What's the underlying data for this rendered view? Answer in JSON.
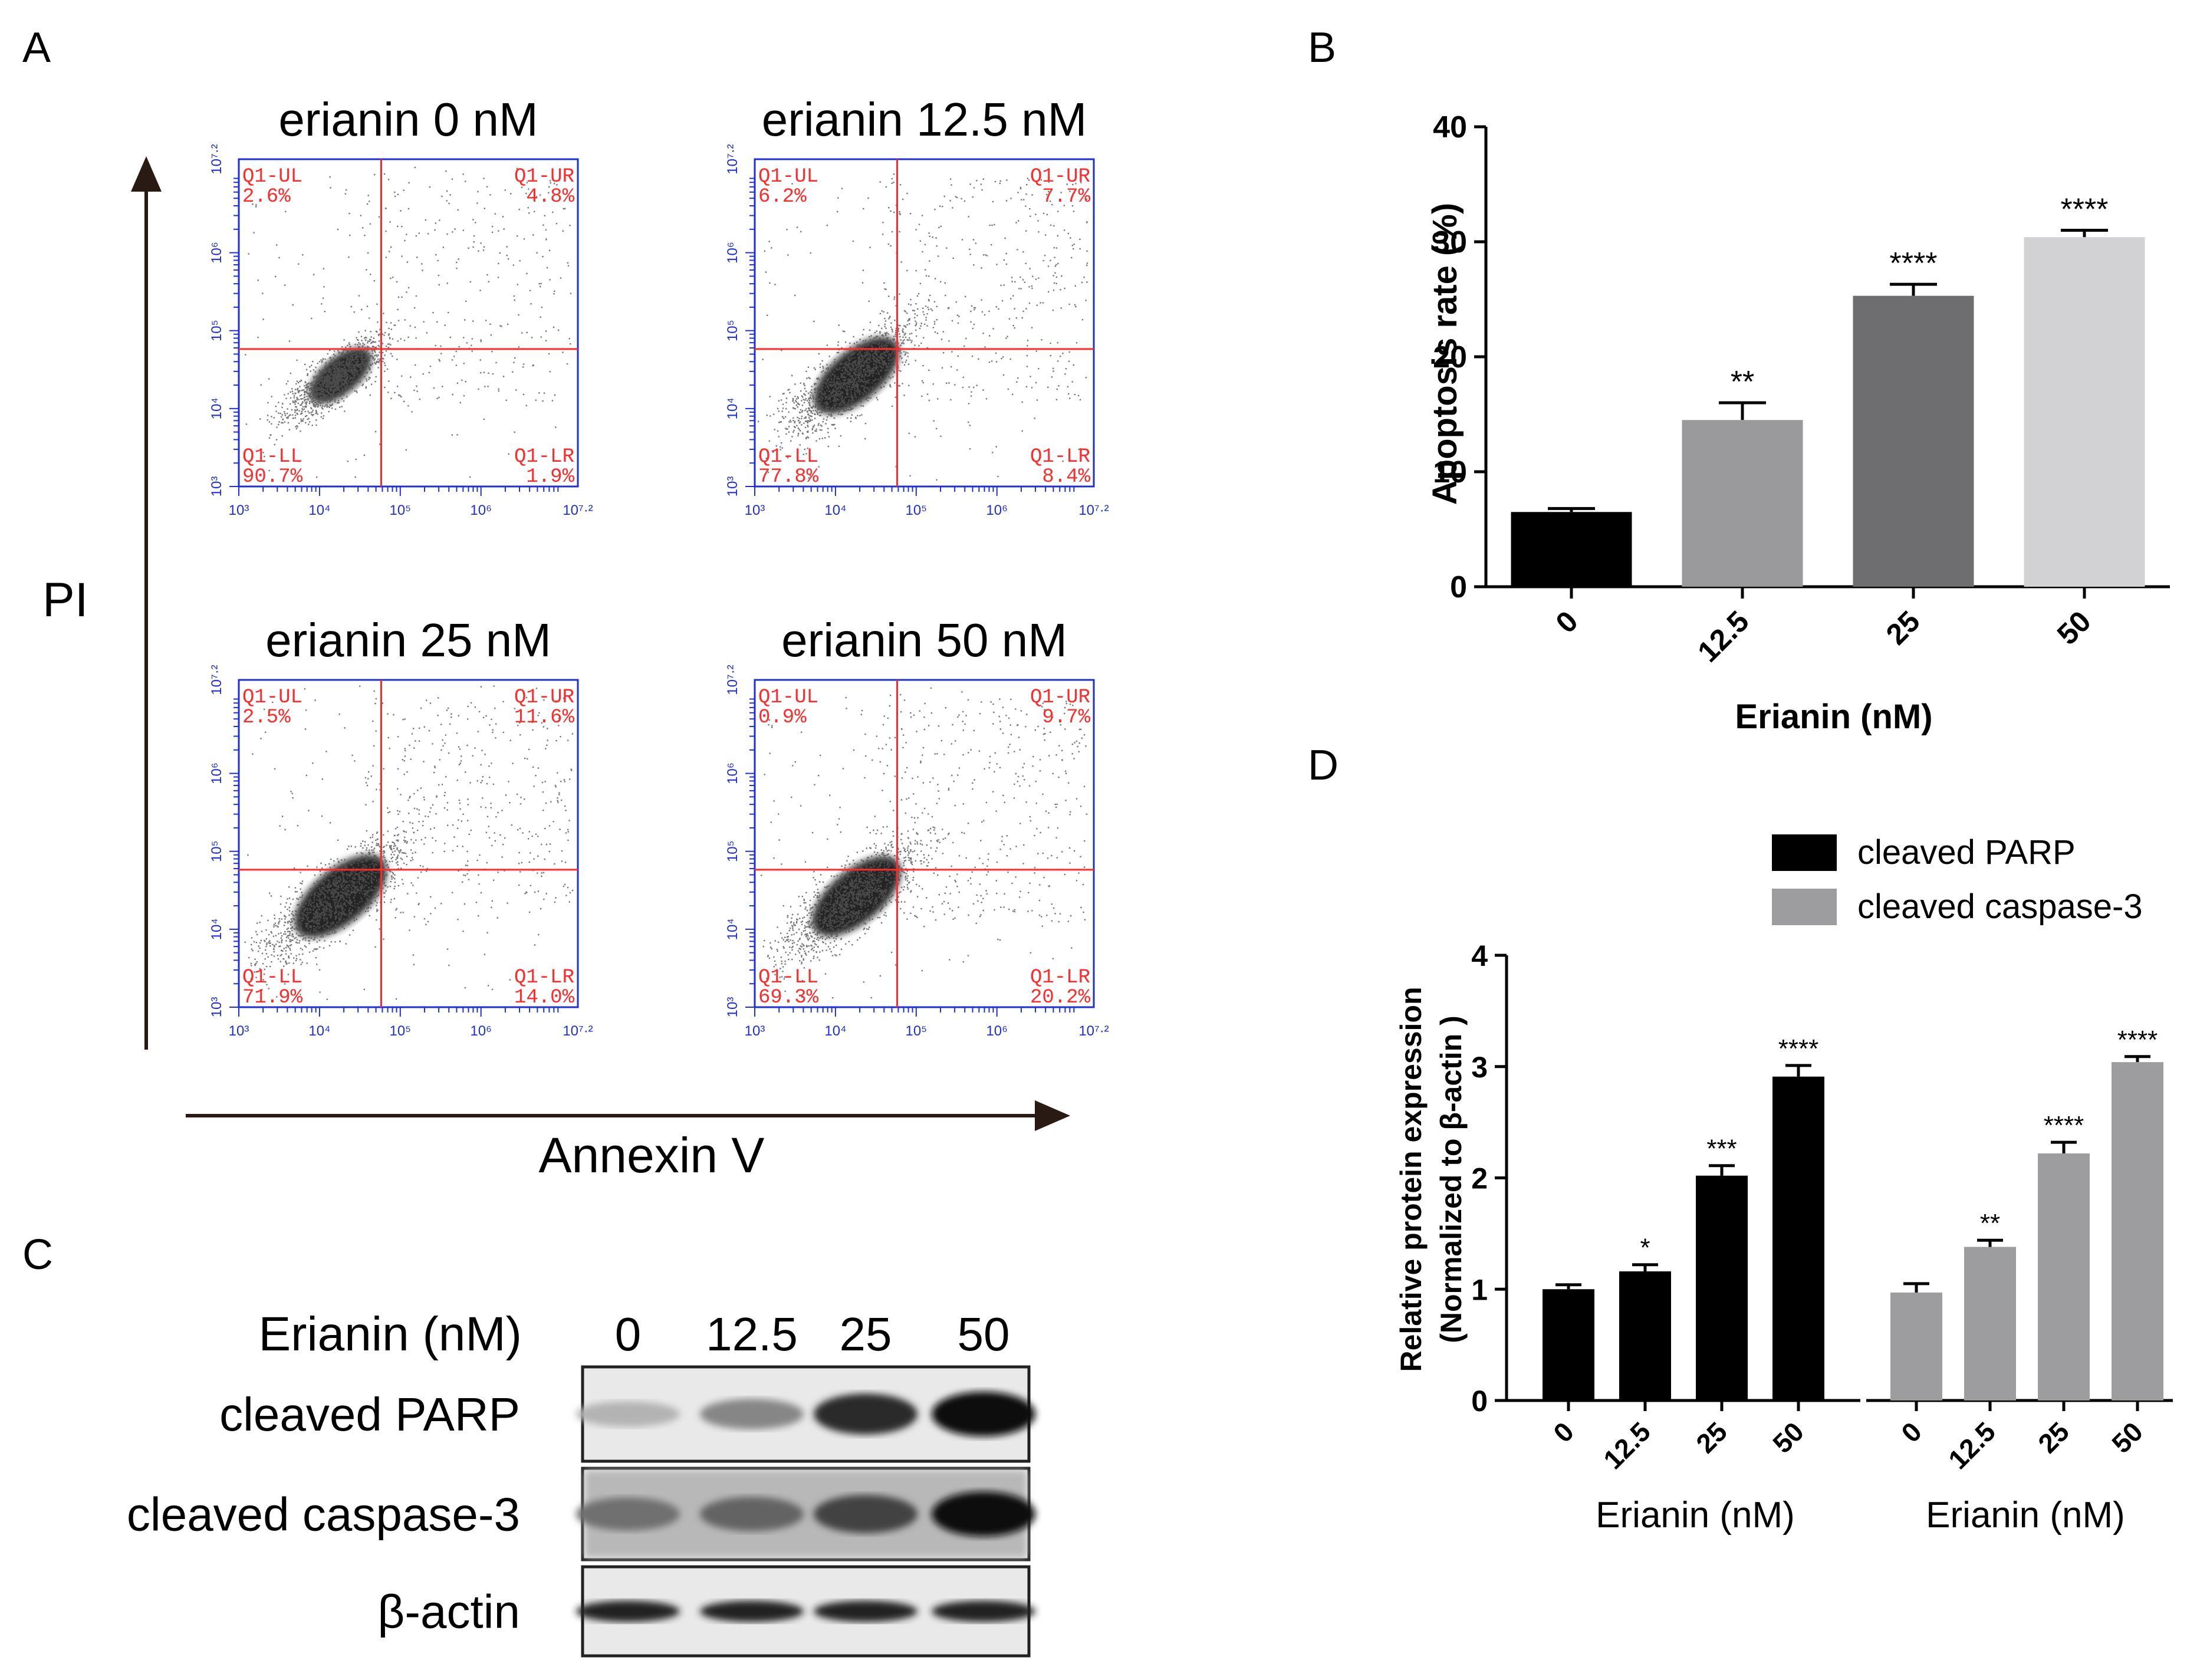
{
  "panels": {
    "A": {
      "letter": "A",
      "y_axis_label": "PI",
      "x_axis_label": "Annexin V",
      "decade_ticks": [
        "10³",
        "10⁴",
        "10⁵",
        "10⁶",
        "10⁷·²"
      ],
      "plots": [
        {
          "title": "erianin 0 nM",
          "UL": [
            "Q1-UL",
            "2.6%"
          ],
          "UR": [
            "Q1-UR",
            "4.8%"
          ],
          "LL": [
            "Q1-LL",
            "90.7%"
          ],
          "LR": [
            "Q1-LR",
            "1.9%"
          ],
          "spread": 0.9
        },
        {
          "title": "erianin 12.5 nM",
          "UL": [
            "Q1-UL",
            "6.2%"
          ],
          "UR": [
            "Q1-UR",
            "7.7%"
          ],
          "LL": [
            "Q1-LL",
            "77.8%"
          ],
          "LR": [
            "Q1-LR",
            "8.4%"
          ],
          "spread": 1.25
        },
        {
          "title": "erianin 25 nM",
          "UL": [
            "Q1-UL",
            "2.5%"
          ],
          "UR": [
            "Q1-UR",
            "11.6%"
          ],
          "LL": [
            "Q1-LL",
            "71.9%"
          ],
          "LR": [
            "Q1-LR",
            "14.0%"
          ],
          "spread": 1.35
        },
        {
          "title": "erianin 50 nM",
          "UL": [
            "Q1-UL",
            "0.9%"
          ],
          "UR": [
            "Q1-UR",
            "9.7%"
          ],
          "LL": [
            "Q1-LL",
            "69.3%"
          ],
          "LR": [
            "Q1-LR",
            "20.2%"
          ],
          "spread": 1.3
        }
      ]
    },
    "B": {
      "letter": "B"
    },
    "C": {
      "letter": "C",
      "header": "Erianin (nM)",
      "lanes": [
        "0",
        "12.5",
        "25",
        "50"
      ],
      "rows": [
        {
          "label": "cleaved PARP",
          "intensity": [
            0.25,
            0.45,
            0.85,
            1.0
          ]
        },
        {
          "label": "cleaved caspase-3",
          "intensity": [
            0.55,
            0.6,
            0.75,
            1.0
          ]
        },
        {
          "label": "β-actin",
          "intensity": [
            0.9,
            0.9,
            0.9,
            0.9
          ]
        }
      ]
    },
    "D": {
      "letter": "D"
    }
  },
  "chart_data": [
    {
      "type": "bar",
      "panel": "B",
      "categories": [
        "0",
        "12.5",
        "25",
        "50"
      ],
      "values": [
        6.5,
        14.5,
        25.3,
        30.4
      ],
      "errors": [
        0.3,
        1.5,
        1.0,
        0.6
      ],
      "significance": [
        "",
        "**",
        "****",
        "****"
      ],
      "colors": [
        "#000000",
        "#9a9a9c",
        "#6e6e70",
        "#d2d2d4"
      ],
      "xlabel": "Erianin (nM)",
      "ylabel": "Apoptosis rate (%)",
      "ylim": [
        0,
        40
      ],
      "yticks": [
        0,
        10,
        20,
        30,
        40
      ]
    },
    {
      "type": "bar",
      "panel": "D",
      "categories": [
        "0",
        "12.5",
        "25",
        "50"
      ],
      "series": [
        {
          "name": "cleaved PARP",
          "color": "#000000",
          "values": [
            1.0,
            1.16,
            2.02,
            2.91
          ],
          "errors": [
            0.04,
            0.06,
            0.09,
            0.1
          ],
          "significance": [
            "",
            "*",
            "***",
            "****"
          ]
        },
        {
          "name": "cleaved caspase-3",
          "color": "#9d9da0",
          "values": [
            0.97,
            1.38,
            2.22,
            3.04
          ],
          "errors": [
            0.08,
            0.06,
            0.1,
            0.05
          ],
          "significance": [
            "",
            "**",
            "****",
            "****"
          ]
        }
      ],
      "xlabel": "Erianin (nM)",
      "ylabel": [
        "Relative protein expression",
        "(Normalized to β-actin )"
      ],
      "ylim": [
        0,
        4
      ],
      "yticks": [
        0,
        1,
        2,
        3,
        4
      ],
      "legend_position": "top"
    }
  ]
}
